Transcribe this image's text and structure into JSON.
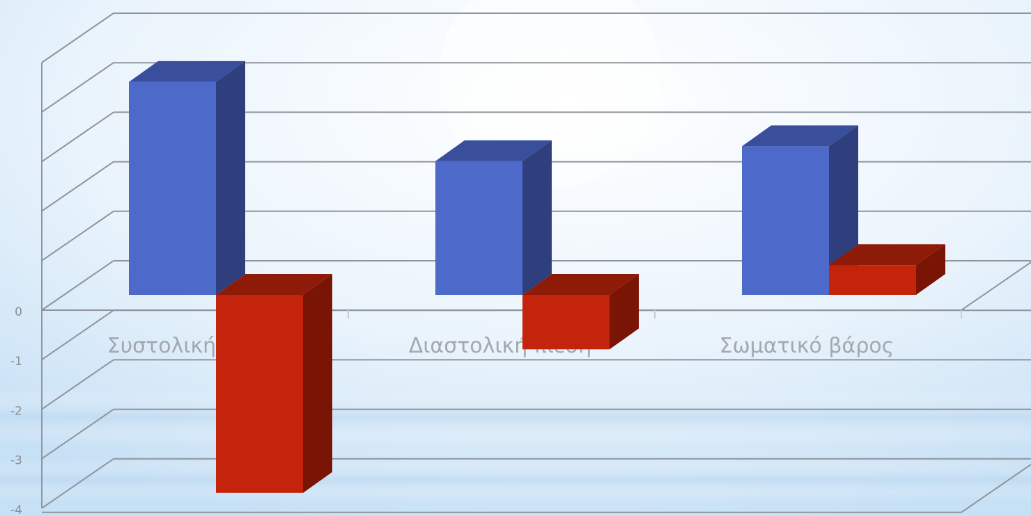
{
  "chart_data": {
    "type": "bar",
    "title": "",
    "xlabel": "",
    "ylabel": "",
    "categories": [
      "Συστολική πίεση",
      "Διαστολική πίεση",
      "Σωματικό βάρος"
    ],
    "series": [
      {
        "values": [
          4.3,
          2.7,
          3.0
        ],
        "color": "#4d69c9",
        "side_color": "#2f3f7e",
        "top_color": "#3a4f9c"
      },
      {
        "values": [
          -4.0,
          -1.1,
          0.6
        ],
        "color": "#c4240c",
        "side_color": "#7a1505",
        "top_color": "#8e1b07"
      }
    ],
    "ylim": [
      -4,
      5
    ],
    "yticks": [
      "0",
      "-1",
      "-2",
      "-3",
      "-4"
    ],
    "grid": true,
    "style": "3d-clustered-column"
  }
}
